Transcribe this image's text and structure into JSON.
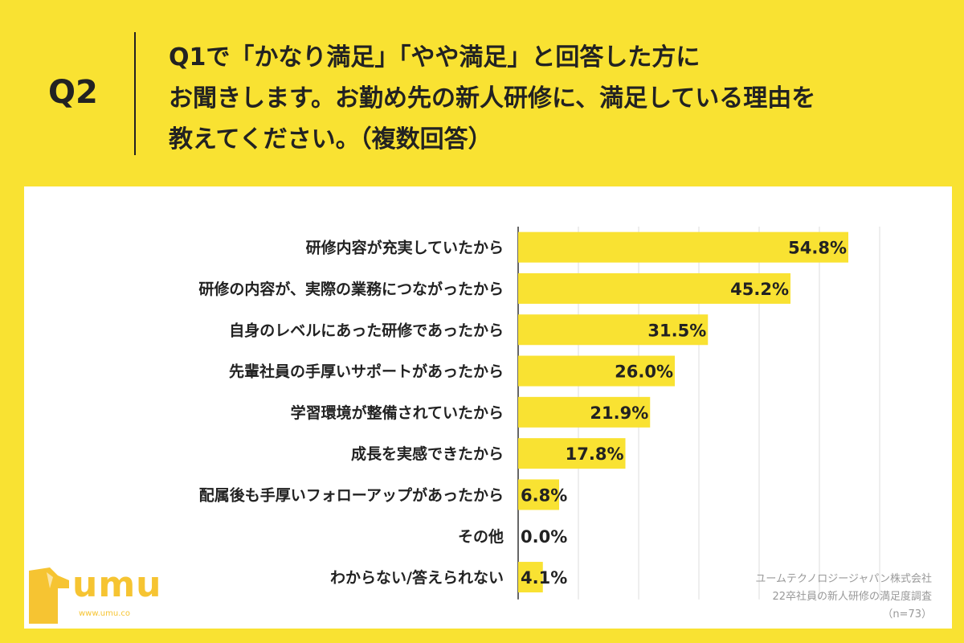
{
  "header": {
    "qnum": "Q2",
    "question_line1": "Q1で「かなり満足」「やや満足」と回答した方に",
    "question_line2": "お聞きします。お勤め先の新人研修に、満足している理由を",
    "question_line3": "教えてください。（複数回答）"
  },
  "chart_data": {
    "type": "bar",
    "orientation": "horizontal",
    "categories": [
      "研修内容が充実していたから",
      "研修の内容が、実際の業務につながったから",
      "自身のレベルにあった研修であったから",
      "先輩社員の手厚いサポートがあったから",
      "学習環境が整備されていたから",
      "成長を実感できたから",
      "配属後も手厚いフォローアップがあったから",
      "その他",
      "わからない/答えられない"
    ],
    "values": [
      54.8,
      45.2,
      31.5,
      26.0,
      21.9,
      17.8,
      6.8,
      0.0,
      4.1
    ],
    "value_labels": [
      "54.8%",
      "45.2%",
      "31.5%",
      "26.0%",
      "21.9%",
      "17.8%",
      "6.8%",
      "0.0%",
      "4.1%"
    ],
    "xlim": [
      0,
      60
    ],
    "grid": true,
    "bar_color": "#f9e232"
  },
  "logo": {
    "text": "umu",
    "url": "www.umu.co"
  },
  "source": {
    "line1": "ユームテクノロジージャパン株式会社",
    "line2": "22卒社員の新人研修の満足度調査",
    "line3": "（n=73）"
  }
}
